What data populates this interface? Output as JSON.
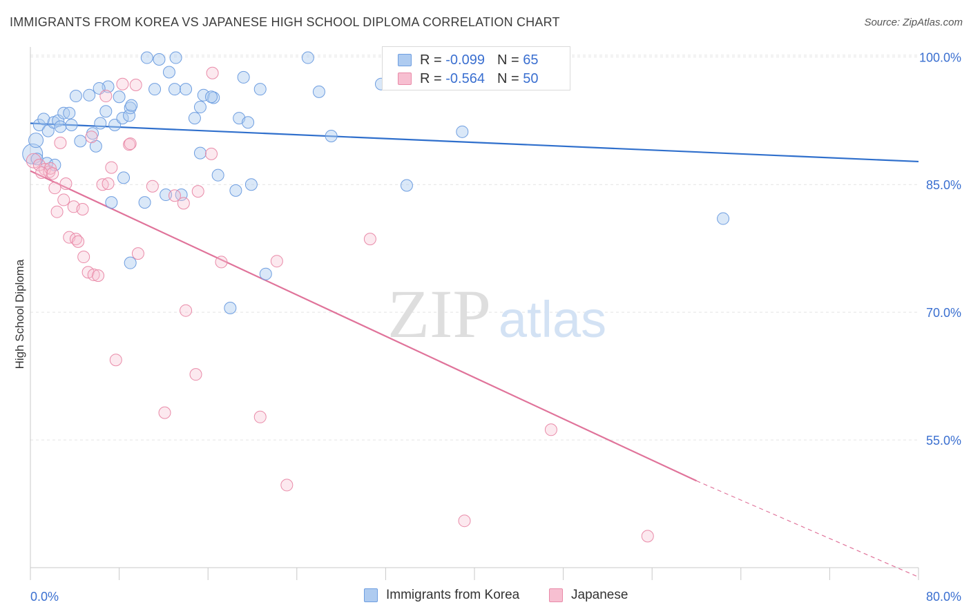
{
  "header": {
    "title": "IMMIGRANTS FROM KOREA VS JAPANESE HIGH SCHOOL DIPLOMA CORRELATION CHART",
    "source": "Source: ZipAtlas.com"
  },
  "watermark": {
    "zip": "ZIP",
    "atlas": "atlas"
  },
  "legend": {
    "rows": [
      {
        "r_label": "R =",
        "r_value": "-0.099",
        "n_label": "N =",
        "n_value": "65",
        "color": "#aecbf0",
        "stroke": "#6d9de0"
      },
      {
        "r_label": "R =",
        "r_value": "-0.564",
        "n_label": "N =",
        "n_value": "50",
        "color": "#f7bfd1",
        "stroke": "#e98aa8"
      }
    ]
  },
  "bottom_legend": {
    "items": [
      {
        "label": "Immigrants from Korea",
        "color": "#aecbf0",
        "stroke": "#6d9de0"
      },
      {
        "label": "Japanese",
        "color": "#f7bfd1",
        "stroke": "#e98aa8"
      }
    ]
  },
  "colors": {
    "korea_fill": "rgba(174,203,240,0.45)",
    "korea_stroke": "#6d9de0",
    "korea_line": "#2f6fcc",
    "japan_fill": "rgba(247,191,209,0.35)",
    "japan_stroke": "#e98aa8",
    "japan_line": "#e0739a",
    "axis_label": "#3a6fd0",
    "grid": "#e3e3e3"
  },
  "chart_data": {
    "type": "scatter",
    "title": "IMMIGRANTS FROM KOREA VS JAPANESE HIGH SCHOOL DIPLOMA CORRELATION CHART",
    "xlabel": "",
    "ylabel": "High School Diploma",
    "xlim": [
      0,
      80
    ],
    "ylim": [
      40,
      101
    ],
    "x_tick_labels": [
      "0.0%",
      "80.0%"
    ],
    "y_ticks": [
      55,
      70,
      85,
      100
    ],
    "y_tick_labels": [
      "55.0%",
      "70.0%",
      "85.0%",
      "100.0%"
    ],
    "grid": true,
    "legend_position": "top-center",
    "series": [
      {
        "name": "Immigrants from Korea",
        "r": -0.099,
        "n": 65,
        "trend": {
          "x": [
            0,
            80
          ],
          "y": [
            92.2,
            87.7
          ]
        },
        "points": [
          [
            0.2,
            88.6,
            14
          ],
          [
            0.5,
            90.2,
            10
          ],
          [
            0.8,
            92.0,
            8
          ],
          [
            1.2,
            92.7,
            8
          ],
          [
            1.6,
            91.3,
            8
          ],
          [
            2.1,
            92.3,
            8
          ],
          [
            2.5,
            92.5,
            8
          ],
          [
            2.7,
            91.8,
            8
          ],
          [
            3.0,
            93.4,
            8
          ],
          [
            3.5,
            93.4,
            8
          ],
          [
            3.7,
            92.0,
            8
          ],
          [
            4.1,
            95.4,
            8
          ],
          [
            5.3,
            95.5,
            8
          ],
          [
            5.6,
            91.0,
            8
          ],
          [
            4.5,
            90.1,
            8
          ],
          [
            5.9,
            89.5,
            8
          ],
          [
            6.3,
            92.2,
            8
          ],
          [
            6.8,
            93.6,
            8
          ],
          [
            7.0,
            96.5,
            8
          ],
          [
            7.6,
            92.0,
            8
          ],
          [
            8.0,
            95.3,
            8
          ],
          [
            8.3,
            92.8,
            8
          ],
          [
            8.9,
            93.1,
            8
          ],
          [
            9.0,
            94.0,
            8
          ],
          [
            9.1,
            94.3,
            8
          ],
          [
            6.2,
            96.3,
            8
          ],
          [
            10.5,
            99.9,
            8
          ],
          [
            11.2,
            96.2,
            8
          ],
          [
            11.6,
            99.7,
            8
          ],
          [
            12.5,
            98.2,
            8
          ],
          [
            13.1,
            99.9,
            8
          ],
          [
            13.0,
            96.2,
            8
          ],
          [
            14.0,
            96.2,
            8
          ],
          [
            14.8,
            92.8,
            8
          ],
          [
            15.3,
            94.1,
            8
          ],
          [
            15.6,
            95.5,
            8
          ],
          [
            16.5,
            95.2,
            8
          ],
          [
            16.3,
            95.3,
            8
          ],
          [
            19.2,
            97.6,
            8
          ],
          [
            18.8,
            92.8,
            8
          ],
          [
            19.6,
            92.3,
            8
          ],
          [
            20.7,
            96.2,
            8
          ],
          [
            25.0,
            99.9,
            8
          ],
          [
            26.0,
            95.9,
            8
          ],
          [
            27.1,
            90.7,
            8
          ],
          [
            31.6,
            96.8,
            8
          ],
          [
            39.2,
            99.9,
            8
          ],
          [
            38.9,
            91.2,
            8
          ],
          [
            15.3,
            88.7,
            8
          ],
          [
            16.9,
            86.1,
            8
          ],
          [
            8.4,
            85.8,
            8
          ],
          [
            18.5,
            84.3,
            8
          ],
          [
            19.9,
            85.0,
            8
          ],
          [
            12.2,
            83.8,
            8
          ],
          [
            13.6,
            83.8,
            8
          ],
          [
            10.3,
            82.9,
            8
          ],
          [
            7.3,
            82.9,
            8
          ],
          [
            33.9,
            84.9,
            8
          ],
          [
            62.4,
            81.0,
            8
          ],
          [
            9.0,
            75.8,
            8
          ],
          [
            21.2,
            74.5,
            8
          ],
          [
            18.0,
            70.5,
            8
          ],
          [
            1.5,
            87.5,
            8
          ],
          [
            2.2,
            87.3,
            8
          ],
          [
            0.6,
            88.0,
            8
          ]
        ]
      },
      {
        "name": "Japanese",
        "r": -0.564,
        "n": 50,
        "trend": {
          "x": [
            0,
            60
          ],
          "y": [
            86.6,
            50.2
          ]
        },
        "trend_dashed": {
          "x": [
            60,
            80
          ],
          "y": [
            50.2,
            38.9
          ]
        },
        "points": [
          [
            0.3,
            87.8,
            10
          ],
          [
            0.8,
            87.3,
            8
          ],
          [
            1.3,
            86.8,
            8
          ],
          [
            1.7,
            86.5,
            8
          ],
          [
            1.8,
            86.9,
            8
          ],
          [
            2.2,
            84.6,
            8
          ],
          [
            2.4,
            81.8,
            8
          ],
          [
            2.7,
            89.9,
            8
          ],
          [
            3.0,
            83.2,
            8
          ],
          [
            3.2,
            85.1,
            8
          ],
          [
            3.5,
            78.8,
            8
          ],
          [
            3.9,
            82.4,
            8
          ],
          [
            4.1,
            78.6,
            8
          ],
          [
            4.3,
            78.3,
            8
          ],
          [
            4.7,
            82.1,
            8
          ],
          [
            4.8,
            76.5,
            8
          ],
          [
            5.2,
            74.7,
            8
          ],
          [
            5.5,
            90.6,
            8
          ],
          [
            5.7,
            74.4,
            8
          ],
          [
            6.1,
            74.3,
            8
          ],
          [
            6.5,
            85.0,
            8
          ],
          [
            6.8,
            95.4,
            8
          ],
          [
            7.0,
            85.1,
            8
          ],
          [
            7.3,
            87.0,
            8
          ],
          [
            7.7,
            64.4,
            8
          ],
          [
            8.3,
            96.8,
            8
          ],
          [
            8.9,
            89.7,
            8
          ],
          [
            9.0,
            89.8,
            8
          ],
          [
            9.5,
            96.7,
            8
          ],
          [
            9.7,
            76.9,
            8
          ],
          [
            11.0,
            84.8,
            8
          ],
          [
            12.1,
            58.2,
            8
          ],
          [
            13.0,
            83.7,
            8
          ],
          [
            13.8,
            82.8,
            8
          ],
          [
            14.0,
            70.2,
            8
          ],
          [
            14.9,
            62.7,
            8
          ],
          [
            15.1,
            84.2,
            8
          ],
          [
            16.3,
            88.6,
            8
          ],
          [
            16.4,
            98.1,
            8
          ],
          [
            17.2,
            75.9,
            8
          ],
          [
            20.7,
            57.7,
            8
          ],
          [
            22.2,
            76.0,
            8
          ],
          [
            23.1,
            49.7,
            8
          ],
          [
            30.6,
            78.6,
            8
          ],
          [
            37.0,
            99.9,
            8
          ],
          [
            39.1,
            45.5,
            8
          ],
          [
            46.9,
            56.2,
            8
          ],
          [
            55.6,
            43.7,
            8
          ],
          [
            1.0,
            86.4,
            8
          ],
          [
            2.0,
            86.3,
            8
          ]
        ]
      }
    ]
  }
}
